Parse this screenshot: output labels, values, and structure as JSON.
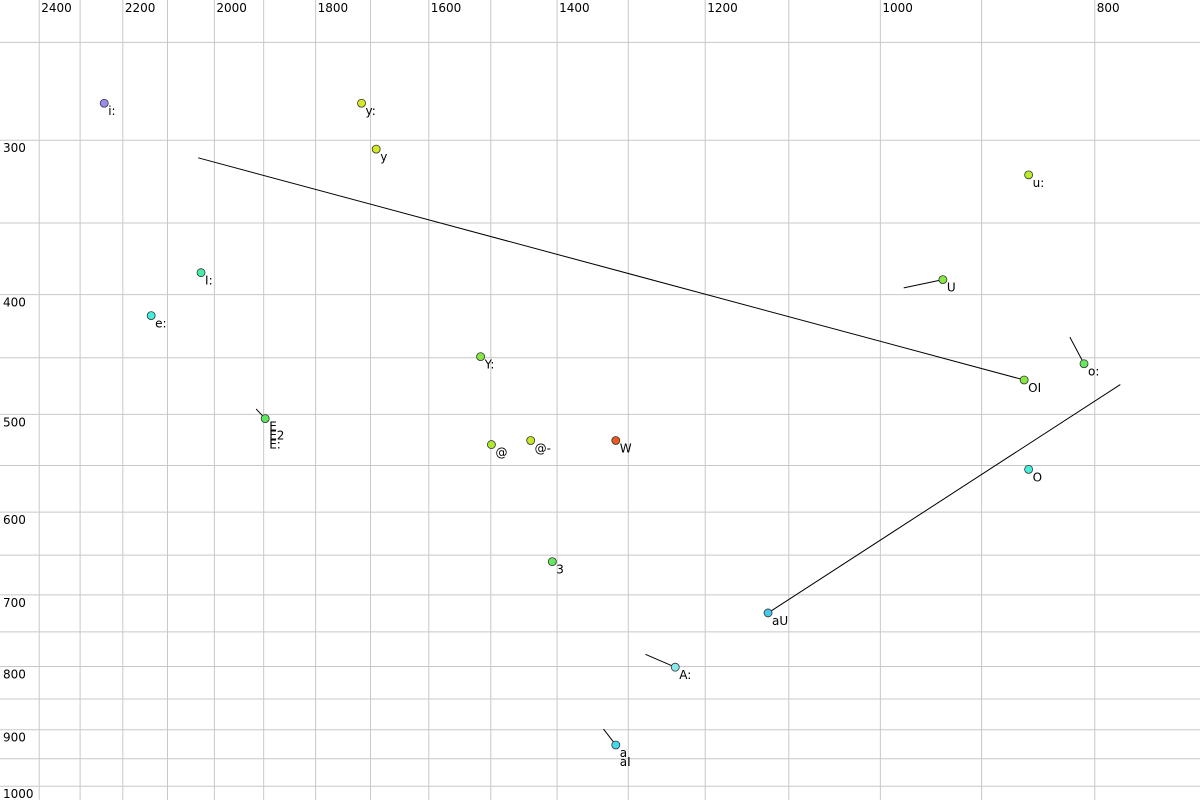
{
  "chart_data": {
    "type": "scatter",
    "xscale": "log",
    "yscale": "log",
    "xlim": [
      2500,
      717
    ],
    "ylim": [
      231,
      1026
    ],
    "xticks": [
      2400,
      2200,
      2000,
      1800,
      1600,
      1400,
      1200,
      1000,
      800
    ],
    "xminor": [
      2300,
      2100,
      1900,
      1700,
      1500,
      1300,
      1100,
      900
    ],
    "yticks": [
      300,
      400,
      500,
      600,
      700,
      800,
      900,
      1000
    ],
    "yminor": [
      250,
      350,
      450,
      550,
      650,
      750,
      850,
      950
    ],
    "grid": true,
    "points": [
      {
        "labels": [
          "i:"
        ],
        "x": 2243,
        "y": 280,
        "color": "#9b8cf0"
      },
      {
        "labels": [
          "y:"
        ],
        "x": 1716,
        "y": 280,
        "color": "#d4ea22"
      },
      {
        "labels": [
          "y"
        ],
        "x": 1690,
        "y": 305,
        "color": "#d4ea22"
      },
      {
        "labels": [
          "u:"
        ],
        "x": 857,
        "y": 320,
        "color": "#b8ec2a"
      },
      {
        "labels": [
          "I:"
        ],
        "x": 2028,
        "y": 384,
        "color": "#44eea8"
      },
      {
        "labels": [
          "e:"
        ],
        "x": 2136,
        "y": 416,
        "color": "#44eedc"
      },
      {
        "labels": [
          "U"
        ],
        "x": 937,
        "y": 389,
        "color": "#86e840",
        "from": [
          976,
          395
        ]
      },
      {
        "labels": [
          "Y:"
        ],
        "x": 1516,
        "y": 449,
        "color": "#86e840"
      },
      {
        "labels": [
          "OI"
        ],
        "x": 861,
        "y": 469,
        "color": "#86e840",
        "from": [
          2034,
          310
        ]
      },
      {
        "labels": [
          "o:"
        ],
        "x": 809,
        "y": 455,
        "color": "#66e860",
        "from": [
          821,
          433
        ]
      },
      {
        "labels": [
          "E",
          "E2",
          "E:"
        ],
        "x": 1897,
        "y": 504,
        "color": "#5ee860",
        "from": [
          1915,
          495
        ]
      },
      {
        "labels": [
          "@"
        ],
        "x": 1499,
        "y": 529,
        "color": "#b0e830"
      },
      {
        "labels": [
          "@-"
        ],
        "x": 1439,
        "y": 525,
        "color": "#c8e628"
      },
      {
        "labels": [
          "W"
        ],
        "x": 1317,
        "y": 525,
        "color": "#ea5a1e"
      },
      {
        "labels": [
          "O"
        ],
        "x": 857,
        "y": 554,
        "color": "#44eedc"
      },
      {
        "labels": [
          "3"
        ],
        "x": 1407,
        "y": 658,
        "color": "#66e860"
      },
      {
        "labels": [
          "aU"
        ],
        "x": 1124,
        "y": 724,
        "color": "#44c8ee",
        "from": [
          779,
          473
        ]
      },
      {
        "labels": [
          "A:"
        ],
        "x": 1238,
        "y": 801,
        "color": "#88e8ee",
        "from": [
          1277,
          782
        ]
      },
      {
        "labels": [
          "a",
          "aI"
        ],
        "x": 1317,
        "y": 926,
        "color": "#44d8ee",
        "from": [
          1334,
          899
        ]
      }
    ]
  }
}
